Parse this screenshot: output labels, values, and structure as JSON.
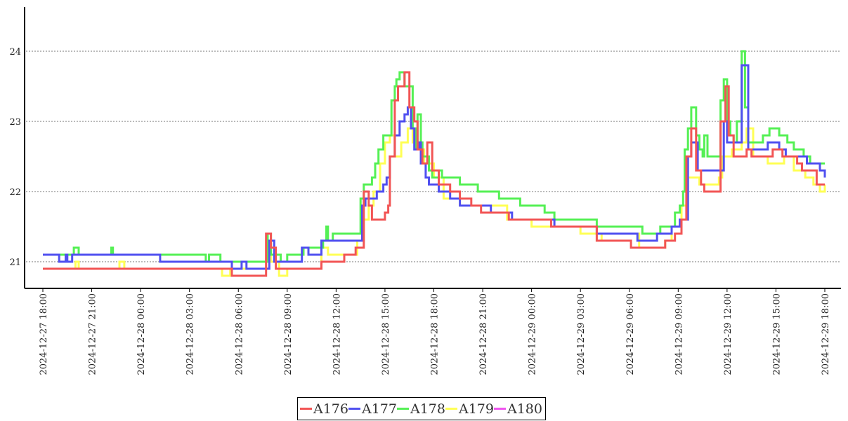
{
  "chart_data": {
    "type": "line",
    "title": "",
    "xlabel": "",
    "ylabel": "",
    "x_start": "2024-12-27 18:00",
    "x_unit": "hours since 2024-12-27 18:00",
    "xlim": [
      0,
      48
    ],
    "ylim": [
      20.63,
      24.63
    ],
    "yticks": [
      21,
      22,
      23,
      24
    ],
    "ytick_labels": [
      "21",
      "22",
      "23",
      "24"
    ],
    "xticks": [
      0,
      3,
      6,
      9,
      12,
      15,
      18,
      21,
      24,
      27,
      30,
      33,
      36,
      39,
      42,
      45,
      48
    ],
    "xtick_labels": [
      "2024-12-27 18:00",
      "2024-12-27 21:00",
      "2024-12-28 00:00",
      "2024-12-28 03:00",
      "2024-12-28 06:00",
      "2024-12-28 09:00",
      "2024-12-28 12:00",
      "2024-12-28 15:00",
      "2024-12-28 18:00",
      "2024-12-28 21:00",
      "2024-12-29 00:00",
      "2024-12-29 03:00",
      "2024-12-29 06:00",
      "2024-12-29 09:00",
      "2024-12-29 12:00",
      "2024-12-29 15:00",
      "2024-12-29 18:00"
    ],
    "grid": "horizontal dotted",
    "legend_position": "bottom-center",
    "series": [
      {
        "name": "A176",
        "color": "#f25555",
        "points": [
          [
            0,
            20.9
          ],
          [
            11.6,
            20.8
          ],
          [
            13.6,
            20.8
          ],
          [
            13.7,
            21.4
          ],
          [
            14.0,
            21.2
          ],
          [
            14.3,
            20.9
          ],
          [
            17.1,
            21.0
          ],
          [
            18.5,
            21.1
          ],
          [
            19.2,
            21.2
          ],
          [
            19.7,
            22.0
          ],
          [
            20.0,
            21.8
          ],
          [
            20.2,
            21.6
          ],
          [
            21.0,
            21.7
          ],
          [
            21.2,
            21.8
          ],
          [
            21.3,
            22.5
          ],
          [
            21.6,
            23.3
          ],
          [
            21.8,
            23.5
          ],
          [
            22.2,
            23.7
          ],
          [
            22.5,
            23.2
          ],
          [
            22.8,
            23.0
          ],
          [
            23.0,
            22.6
          ],
          [
            23.3,
            22.4
          ],
          [
            23.6,
            22.7
          ],
          [
            23.9,
            22.3
          ],
          [
            24.3,
            22.1
          ],
          [
            25.0,
            22.0
          ],
          [
            25.6,
            21.9
          ],
          [
            26.3,
            21.8
          ],
          [
            26.9,
            21.7
          ],
          [
            28.6,
            21.6
          ],
          [
            31.2,
            21.5
          ],
          [
            34.0,
            21.3
          ],
          [
            36.1,
            21.2
          ],
          [
            38.2,
            21.3
          ],
          [
            38.8,
            21.4
          ],
          [
            39.2,
            21.6
          ],
          [
            39.5,
            22.5
          ],
          [
            39.8,
            22.9
          ],
          [
            40.1,
            22.3
          ],
          [
            40.4,
            22.1
          ],
          [
            40.6,
            22.0
          ],
          [
            41.3,
            22.0
          ],
          [
            41.6,
            23.0
          ],
          [
            41.9,
            23.5
          ],
          [
            42.1,
            22.8
          ],
          [
            42.4,
            22.5
          ],
          [
            42.9,
            22.5
          ],
          [
            43.2,
            22.6
          ],
          [
            43.5,
            22.5
          ],
          [
            44.8,
            22.6
          ],
          [
            45.4,
            22.5
          ],
          [
            46.3,
            22.4
          ],
          [
            46.6,
            22.3
          ],
          [
            47.5,
            22.1
          ],
          [
            48,
            22.1
          ]
        ]
      },
      {
        "name": "A177",
        "color": "#5050f0",
        "points": [
          [
            0,
            21.1
          ],
          [
            1.0,
            21.0
          ],
          [
            1.4,
            21.1
          ],
          [
            1.5,
            21.0
          ],
          [
            1.8,
            21.1
          ],
          [
            7.2,
            21.0
          ],
          [
            11.6,
            20.9
          ],
          [
            12.2,
            21.0
          ],
          [
            12.5,
            20.9
          ],
          [
            13.5,
            20.9
          ],
          [
            13.9,
            21.3
          ],
          [
            14.2,
            21.0
          ],
          [
            15.9,
            21.2
          ],
          [
            16.3,
            21.1
          ],
          [
            17.1,
            21.3
          ],
          [
            19.2,
            21.3
          ],
          [
            19.6,
            21.8
          ],
          [
            19.8,
            21.9
          ],
          [
            20.5,
            22.0
          ],
          [
            20.9,
            22.1
          ],
          [
            21.1,
            22.2
          ],
          [
            21.3,
            22.5
          ],
          [
            21.6,
            22.8
          ],
          [
            21.9,
            23.0
          ],
          [
            22.2,
            23.1
          ],
          [
            22.4,
            23.2
          ],
          [
            22.6,
            22.9
          ],
          [
            22.8,
            22.6
          ],
          [
            23.1,
            22.7
          ],
          [
            23.2,
            22.4
          ],
          [
            23.5,
            22.2
          ],
          [
            23.7,
            22.1
          ],
          [
            24.3,
            22.0
          ],
          [
            25.0,
            21.9
          ],
          [
            25.6,
            21.8
          ],
          [
            27.5,
            21.7
          ],
          [
            28.8,
            21.6
          ],
          [
            31.4,
            21.5
          ],
          [
            34.0,
            21.4
          ],
          [
            36.5,
            21.3
          ],
          [
            37.7,
            21.4
          ],
          [
            38.6,
            21.5
          ],
          [
            39.1,
            21.6
          ],
          [
            39.6,
            22.5
          ],
          [
            39.8,
            22.7
          ],
          [
            40.2,
            22.3
          ],
          [
            41.4,
            22.3
          ],
          [
            41.8,
            23.0
          ],
          [
            42.0,
            22.7
          ],
          [
            42.6,
            22.7
          ],
          [
            42.9,
            23.8
          ],
          [
            43.3,
            22.6
          ],
          [
            44.5,
            22.7
          ],
          [
            45.2,
            22.6
          ],
          [
            45.6,
            22.5
          ],
          [
            46.9,
            22.4
          ],
          [
            47.7,
            22.3
          ],
          [
            48,
            22.2
          ]
        ]
      },
      {
        "name": "A178",
        "color": "#55f055",
        "points": [
          [
            0,
            21.1
          ],
          [
            1.9,
            21.2
          ],
          [
            2.2,
            21.1
          ],
          [
            4.2,
            21.2
          ],
          [
            4.3,
            21.1
          ],
          [
            10.0,
            21.0
          ],
          [
            10.2,
            21.1
          ],
          [
            10.9,
            21.0
          ],
          [
            13.6,
            21.0
          ],
          [
            13.8,
            21.4
          ],
          [
            14.0,
            21.1
          ],
          [
            14.6,
            21.0
          ],
          [
            15.0,
            21.1
          ],
          [
            16.0,
            21.2
          ],
          [
            17.2,
            21.3
          ],
          [
            17.4,
            21.5
          ],
          [
            17.5,
            21.3
          ],
          [
            17.8,
            21.4
          ],
          [
            19.3,
            21.4
          ],
          [
            19.5,
            21.9
          ],
          [
            19.7,
            22.1
          ],
          [
            20.2,
            22.2
          ],
          [
            20.4,
            22.4
          ],
          [
            20.6,
            22.6
          ],
          [
            20.9,
            22.8
          ],
          [
            21.3,
            22.8
          ],
          [
            21.4,
            23.3
          ],
          [
            21.6,
            23.5
          ],
          [
            21.7,
            23.6
          ],
          [
            21.9,
            23.7
          ],
          [
            22.2,
            23.5
          ],
          [
            22.6,
            23.5
          ],
          [
            22.7,
            22.9
          ],
          [
            22.9,
            22.6
          ],
          [
            23.0,
            23.1
          ],
          [
            23.2,
            22.7
          ],
          [
            23.3,
            22.5
          ],
          [
            23.7,
            22.3
          ],
          [
            23.9,
            22.2
          ],
          [
            24.3,
            22.3
          ],
          [
            24.5,
            22.2
          ],
          [
            25.6,
            22.1
          ],
          [
            26.7,
            22.0
          ],
          [
            28.0,
            21.9
          ],
          [
            29.3,
            21.8
          ],
          [
            30.8,
            21.7
          ],
          [
            31.4,
            21.6
          ],
          [
            34.0,
            21.5
          ],
          [
            36.8,
            21.4
          ],
          [
            37.9,
            21.5
          ],
          [
            38.8,
            21.7
          ],
          [
            39.1,
            21.8
          ],
          [
            39.3,
            22.0
          ],
          [
            39.4,
            22.6
          ],
          [
            39.6,
            22.9
          ],
          [
            39.8,
            23.2
          ],
          [
            40.1,
            22.8
          ],
          [
            40.3,
            22.6
          ],
          [
            40.5,
            22.5
          ],
          [
            40.6,
            22.8
          ],
          [
            40.8,
            22.5
          ],
          [
            41.4,
            22.5
          ],
          [
            41.6,
            23.3
          ],
          [
            41.8,
            23.6
          ],
          [
            42.0,
            23.0
          ],
          [
            42.2,
            22.8
          ],
          [
            42.4,
            22.7
          ],
          [
            42.6,
            23.0
          ],
          [
            42.9,
            24.0
          ],
          [
            43.1,
            23.2
          ],
          [
            43.3,
            22.7
          ],
          [
            44.2,
            22.8
          ],
          [
            44.6,
            22.9
          ],
          [
            45.2,
            22.8
          ],
          [
            45.7,
            22.7
          ],
          [
            46.1,
            22.6
          ],
          [
            46.7,
            22.5
          ],
          [
            47.1,
            22.4
          ],
          [
            48,
            22.4
          ]
        ]
      },
      {
        "name": "A179",
        "color": "#ffff55",
        "points": [
          [
            0,
            20.9
          ],
          [
            2.0,
            21.0
          ],
          [
            2.2,
            20.9
          ],
          [
            4.7,
            21.0
          ],
          [
            5.0,
            20.9
          ],
          [
            11.0,
            20.8
          ],
          [
            11.5,
            20.9
          ],
          [
            13.6,
            20.9
          ],
          [
            13.7,
            21.3
          ],
          [
            14.0,
            21.0
          ],
          [
            14.5,
            20.8
          ],
          [
            15.0,
            20.9
          ],
          [
            17.1,
            21.2
          ],
          [
            17.5,
            21.1
          ],
          [
            19.3,
            21.3
          ],
          [
            19.7,
            21.6
          ],
          [
            20.0,
            21.8
          ],
          [
            20.3,
            22.0
          ],
          [
            20.7,
            22.4
          ],
          [
            21.0,
            22.7
          ],
          [
            21.3,
            22.8
          ],
          [
            21.6,
            22.5
          ],
          [
            22.0,
            22.7
          ],
          [
            22.4,
            22.9
          ],
          [
            22.7,
            22.7
          ],
          [
            23.0,
            22.6
          ],
          [
            23.4,
            22.4
          ],
          [
            24.0,
            22.2
          ],
          [
            24.6,
            21.9
          ],
          [
            25.6,
            21.8
          ],
          [
            26.9,
            21.8
          ],
          [
            28.5,
            21.6
          ],
          [
            30.0,
            21.5
          ],
          [
            33.0,
            21.4
          ],
          [
            34.0,
            21.3
          ],
          [
            34.3,
            21.4
          ],
          [
            36.6,
            21.2
          ],
          [
            38.2,
            21.3
          ],
          [
            38.6,
            21.5
          ],
          [
            39.2,
            21.8
          ],
          [
            39.6,
            22.2
          ],
          [
            40.3,
            22.1
          ],
          [
            41.5,
            22.2
          ],
          [
            41.7,
            22.5
          ],
          [
            42.3,
            22.6
          ],
          [
            42.9,
            22.7
          ],
          [
            43.2,
            22.9
          ],
          [
            43.6,
            22.5
          ],
          [
            44.5,
            22.4
          ],
          [
            45.5,
            22.5
          ],
          [
            46.1,
            22.3
          ],
          [
            46.8,
            22.2
          ],
          [
            47.3,
            22.1
          ],
          [
            47.7,
            22.0
          ],
          [
            48,
            22.1
          ]
        ]
      },
      {
        "name": "A180",
        "color": "#f055f0",
        "points": []
      }
    ]
  }
}
